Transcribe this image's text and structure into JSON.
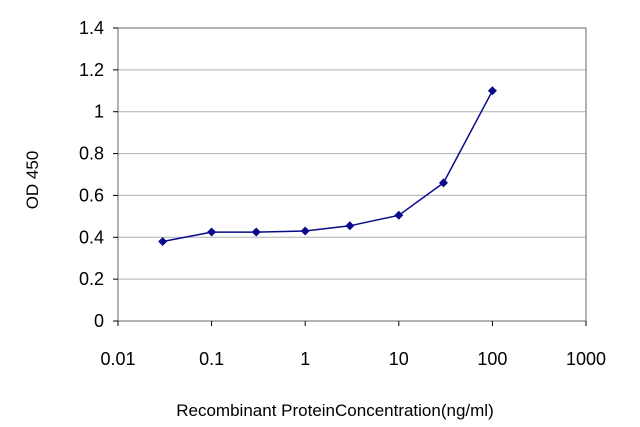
{
  "chart_data": {
    "type": "line",
    "title": "",
    "xlabel": "Recombinant ProteinConcentration(ng/ml)",
    "ylabel": "OD 450",
    "x_scale": "log",
    "xlim": [
      0.01,
      1000
    ],
    "ylim": [
      0,
      1.4
    ],
    "x_ticks": [
      "0.01",
      "0.1",
      "1",
      "10",
      "100",
      "1000"
    ],
    "y_ticks": [
      "0",
      "0.2",
      "0.4",
      "0.6",
      "0.8",
      "1",
      "1.2",
      "1.4"
    ],
    "grid": "horizontal",
    "series": [
      {
        "x": [
          0.03,
          0.1,
          0.3,
          1,
          3,
          10,
          30,
          100
        ],
        "values": [
          0.38,
          0.425,
          0.425,
          0.43,
          0.455,
          0.505,
          0.66,
          1.1
        ]
      }
    ],
    "colors": {
      "series": "#0a0a8c",
      "plot_border": "#808080",
      "grid": "#b0b0b0"
    }
  }
}
